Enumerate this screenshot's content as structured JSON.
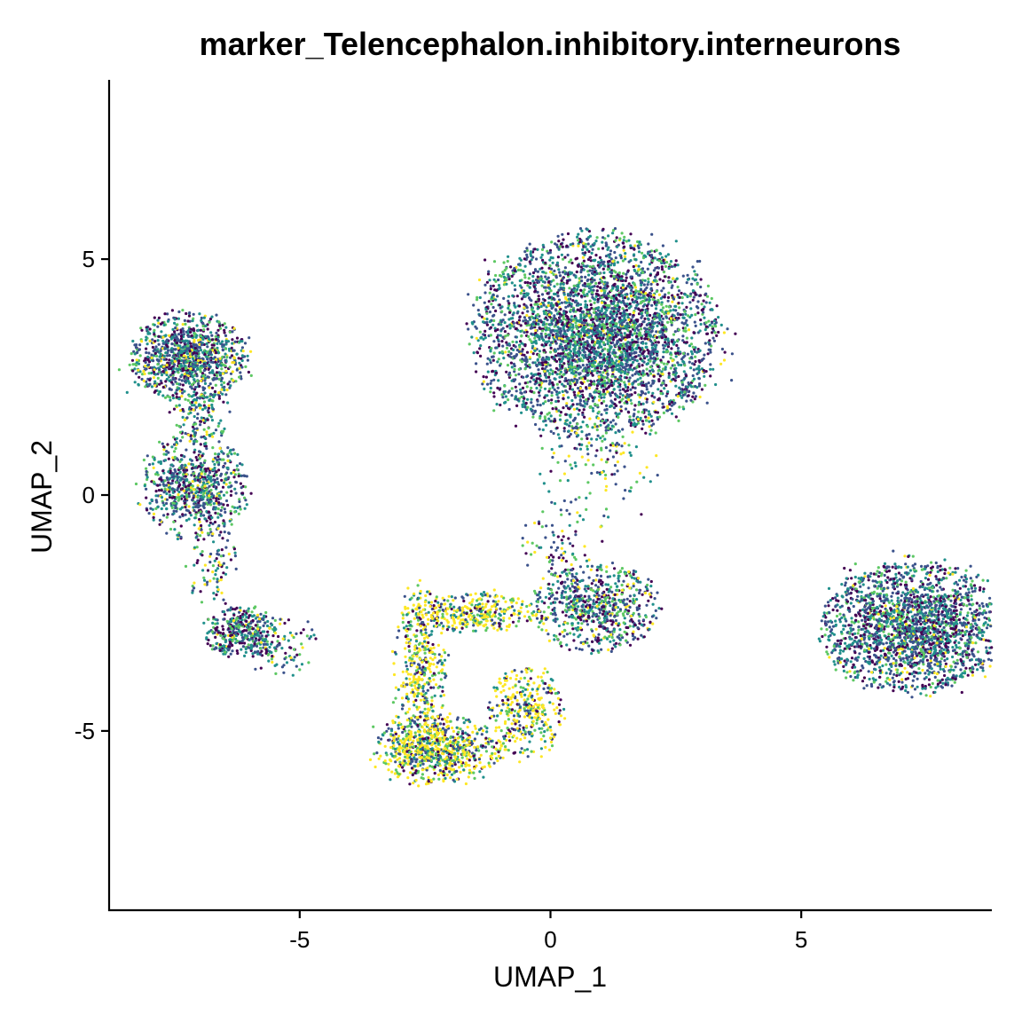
{
  "chart_data": {
    "type": "scatter",
    "title": "marker_Telencephalon.inhibitory.interneurons",
    "xlabel": "UMAP_1",
    "ylabel": "UMAP_2",
    "xlim": [
      -8.8,
      8.8
    ],
    "ylim": [
      -8.8,
      8.8
    ],
    "xticks": [
      -5,
      0,
      5
    ],
    "yticks": [
      -5,
      0,
      5
    ],
    "xtick_labels": [
      "-5",
      "0",
      "5"
    ],
    "ytick_labels": [
      "-5",
      "0",
      "5"
    ],
    "grid": false,
    "legend": "none",
    "palette": [
      "#440154",
      "#3b528b",
      "#21908c",
      "#5dc863",
      "#fde725"
    ],
    "clusters": [
      {
        "center": [
          -7.2,
          2.9
        ],
        "spread": [
          0.55,
          0.45
        ],
        "count": 1100,
        "yellow_share": 0.12
      },
      {
        "center": [
          -7.1,
          0.2
        ],
        "spread": [
          0.5,
          0.55
        ],
        "count": 800,
        "yellow_share": 0.12
      },
      {
        "center": [
          -6.2,
          -2.9
        ],
        "spread": [
          0.35,
          0.25
        ],
        "count": 350,
        "yellow_share": 0.05
      },
      {
        "center": [
          0.9,
          3.4
        ],
        "spread": [
          1.15,
          1.0
        ],
        "count": 4000,
        "yellow_share": 0.06
      },
      {
        "center": [
          7.2,
          -2.8
        ],
        "spread": [
          0.85,
          0.65
        ],
        "count": 2200,
        "yellow_share": 0.05
      },
      {
        "center": [
          0.9,
          -2.4
        ],
        "spread": [
          0.6,
          0.45
        ],
        "count": 700,
        "yellow_share": 0.12
      },
      {
        "center": [
          -2.3,
          -5.4
        ],
        "spread": [
          0.6,
          0.35
        ],
        "count": 800,
        "yellow_share": 0.55
      },
      {
        "center": [
          -2.6,
          -3.8
        ],
        "spread": [
          0.25,
          0.9
        ],
        "count": 450,
        "yellow_share": 0.55
      },
      {
        "center": [
          -1.5,
          -2.5
        ],
        "spread": [
          0.6,
          0.2
        ],
        "count": 350,
        "yellow_share": 0.6
      },
      {
        "center": [
          -0.5,
          -4.6
        ],
        "spread": [
          0.35,
          0.45
        ],
        "count": 350,
        "yellow_share": 0.55
      },
      {
        "center": [
          -5.5,
          -3.2
        ],
        "spread": [
          0.45,
          0.3
        ],
        "count": 120,
        "yellow_share": 0.15
      },
      {
        "center": [
          -7.0,
          1.7
        ],
        "spread": [
          0.3,
          0.3
        ],
        "count": 120,
        "yellow_share": 0.15
      },
      {
        "center": [
          -6.7,
          -1.6
        ],
        "spread": [
          0.25,
          0.4
        ],
        "count": 80,
        "yellow_share": 0.15
      },
      {
        "center": [
          0.9,
          0.8
        ],
        "spread": [
          0.6,
          0.7
        ],
        "count": 160,
        "yellow_share": 0.2
      },
      {
        "center": [
          0.2,
          -1.2
        ],
        "spread": [
          0.4,
          0.5
        ],
        "count": 90,
        "yellow_share": 0.2
      }
    ]
  }
}
